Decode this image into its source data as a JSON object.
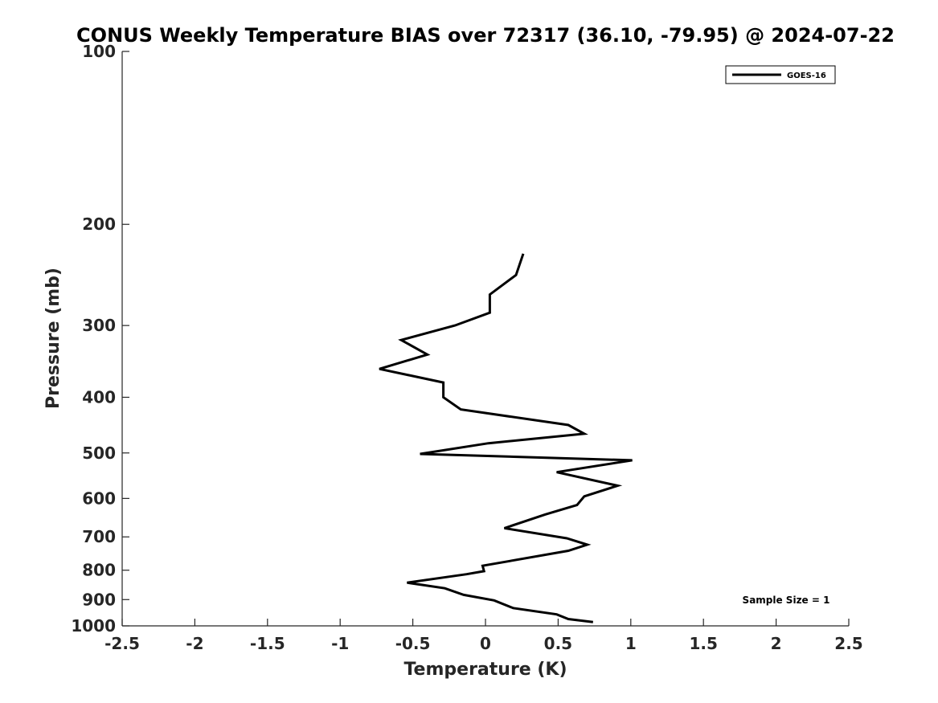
{
  "chart_data": {
    "type": "line",
    "title": "CONUS Weekly Temperature BIAS over 72317 (36.10, -79.95) @ 2024-07-22",
    "xlabel": "Temperature (K)",
    "ylabel": "Pressure (mb)",
    "xlim": [
      -2.5,
      2.5
    ],
    "ylim": [
      1000,
      100
    ],
    "yscale": "log",
    "x_ticks": [
      "-2.5",
      "-2",
      "-1.5",
      "-1",
      "-0.5",
      "0",
      "0.5",
      "1",
      "1.5",
      "2",
      "2.5"
    ],
    "y_ticks": [
      "100",
      "200",
      "300",
      "400",
      "500",
      "600",
      "700",
      "800",
      "900",
      "1000"
    ],
    "grid": false,
    "legend_position": "top-right",
    "series": [
      {
        "name": "GOES-16",
        "color": "#000000",
        "points": [
          {
            "x": 0.26,
            "y": 225
          },
          {
            "x": 0.21,
            "y": 245
          },
          {
            "x": 0.03,
            "y": 265
          },
          {
            "x": 0.03,
            "y": 285
          },
          {
            "x": -0.21,
            "y": 300
          },
          {
            "x": -0.58,
            "y": 318
          },
          {
            "x": -0.4,
            "y": 337
          },
          {
            "x": -0.73,
            "y": 357
          },
          {
            "x": -0.29,
            "y": 377
          },
          {
            "x": -0.29,
            "y": 400
          },
          {
            "x": -0.17,
            "y": 420
          },
          {
            "x": 0.57,
            "y": 447
          },
          {
            "x": 0.68,
            "y": 463
          },
          {
            "x": 0.02,
            "y": 481
          },
          {
            "x": -0.45,
            "y": 502
          },
          {
            "x": 1.01,
            "y": 515
          },
          {
            "x": 0.49,
            "y": 540
          },
          {
            "x": 0.91,
            "y": 570
          },
          {
            "x": 0.68,
            "y": 595
          },
          {
            "x": 0.63,
            "y": 616
          },
          {
            "x": 0.41,
            "y": 640
          },
          {
            "x": 0.13,
            "y": 676
          },
          {
            "x": 0.56,
            "y": 704
          },
          {
            "x": 0.7,
            "y": 722
          },
          {
            "x": 0.57,
            "y": 740
          },
          {
            "x": -0.02,
            "y": 786
          },
          {
            "x": -0.01,
            "y": 803
          },
          {
            "x": -0.13,
            "y": 813
          },
          {
            "x": -0.54,
            "y": 841
          },
          {
            "x": -0.28,
            "y": 860
          },
          {
            "x": -0.15,
            "y": 883
          },
          {
            "x": 0.06,
            "y": 903
          },
          {
            "x": 0.19,
            "y": 931
          },
          {
            "x": 0.49,
            "y": 955
          },
          {
            "x": 0.57,
            "y": 973
          },
          {
            "x": 0.74,
            "y": 985
          }
        ]
      }
    ],
    "annotations": [
      "Sample Size = 1"
    ]
  }
}
